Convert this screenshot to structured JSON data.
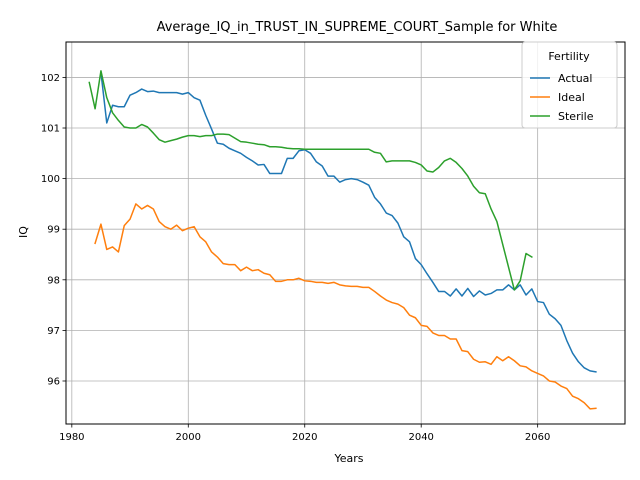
{
  "chart_data": {
    "type": "line",
    "title": "Average_IQ_in_TRUST_IN_SUPREME_COURT_Sample for White",
    "xlabel": "Years",
    "ylabel": "IQ",
    "xlim": [
      1979,
      2075
    ],
    "ylim": [
      95.15,
      102.7
    ],
    "xticks": [
      1980,
      2000,
      2020,
      2040,
      2060
    ],
    "yticks": [
      96,
      97,
      98,
      99,
      100,
      101,
      102
    ],
    "grid": true,
    "legend": {
      "title": "Fertility",
      "position": "top-right"
    },
    "series": [
      {
        "name": "Actual",
        "color": "#1f77b4",
        "x": [
          1985,
          1986,
          1987,
          1988,
          1989,
          1990,
          1991,
          1992,
          1993,
          1994,
          1995,
          1996,
          1997,
          1998,
          1999,
          2000,
          2001,
          2002,
          2003,
          2004,
          2005,
          2006,
          2007,
          2008,
          2009,
          2010,
          2011,
          2012,
          2013,
          2014,
          2015,
          2016,
          2017,
          2018,
          2019,
          2020,
          2021,
          2022,
          2023,
          2024,
          2025,
          2026,
          2027,
          2028,
          2029,
          2030,
          2031,
          2032,
          2033,
          2034,
          2035,
          2036,
          2037,
          2038,
          2039,
          2040,
          2041,
          2042,
          2043,
          2044,
          2045,
          2046,
          2047,
          2048,
          2049,
          2050,
          2051,
          2052,
          2053,
          2054,
          2055,
          2056,
          2057,
          2058,
          2059,
          2060,
          2061,
          2062,
          2063,
          2064,
          2065,
          2066,
          2067,
          2068,
          2069,
          2070
        ],
        "y": [
          102.1,
          101.1,
          101.45,
          101.42,
          101.42,
          101.65,
          101.7,
          101.77,
          101.72,
          101.73,
          101.7,
          101.7,
          101.7,
          101.7,
          101.67,
          101.7,
          101.6,
          101.55,
          101.25,
          100.98,
          100.7,
          100.68,
          100.6,
          100.55,
          100.5,
          100.42,
          100.35,
          100.27,
          100.28,
          100.1,
          100.1,
          100.1,
          100.4,
          100.4,
          100.55,
          100.57,
          100.5,
          100.33,
          100.25,
          100.05,
          100.05,
          99.93,
          99.98,
          100.0,
          99.98,
          99.93,
          99.87,
          99.63,
          99.5,
          99.32,
          99.27,
          99.12,
          98.85,
          98.75,
          98.42,
          98.3,
          98.12,
          97.95,
          97.77,
          97.77,
          97.68,
          97.82,
          97.68,
          97.83,
          97.67,
          97.78,
          97.7,
          97.73,
          97.8,
          97.8,
          97.9,
          97.8,
          97.9,
          97.7,
          97.82,
          97.57,
          97.55,
          97.32,
          97.23,
          97.1,
          96.8,
          96.55,
          96.38,
          96.26,
          96.2,
          96.18
        ]
      },
      {
        "name": "Ideal",
        "color": "#ff7f0e",
        "x": [
          1984,
          1985,
          1986,
          1987,
          1988,
          1989,
          1990,
          1991,
          1992,
          1993,
          1994,
          1995,
          1996,
          1997,
          1998,
          1999,
          2000,
          2001,
          2002,
          2003,
          2004,
          2005,
          2006,
          2007,
          2008,
          2009,
          2010,
          2011,
          2012,
          2013,
          2014,
          2015,
          2016,
          2017,
          2018,
          2019,
          2020,
          2021,
          2022,
          2023,
          2024,
          2025,
          2026,
          2027,
          2028,
          2029,
          2030,
          2031,
          2032,
          2033,
          2034,
          2035,
          2036,
          2037,
          2038,
          2039,
          2040,
          2041,
          2042,
          2043,
          2044,
          2045,
          2046,
          2047,
          2048,
          2049,
          2050,
          2051,
          2052,
          2053,
          2054,
          2055,
          2056,
          2057,
          2058,
          2059,
          2060,
          2061,
          2062,
          2063,
          2064,
          2065,
          2066,
          2067,
          2068,
          2069,
          2070
        ],
        "y": [
          98.72,
          99.1,
          98.6,
          98.65,
          98.55,
          99.07,
          99.2,
          99.5,
          99.4,
          99.47,
          99.4,
          99.15,
          99.05,
          99.0,
          99.08,
          98.97,
          99.02,
          99.05,
          98.85,
          98.75,
          98.55,
          98.45,
          98.32,
          98.3,
          98.3,
          98.18,
          98.25,
          98.18,
          98.2,
          98.13,
          98.1,
          97.97,
          97.97,
          98.0,
          98.0,
          98.03,
          97.98,
          97.97,
          97.95,
          97.95,
          97.93,
          97.95,
          97.9,
          97.88,
          97.87,
          97.87,
          97.85,
          97.85,
          97.77,
          97.68,
          97.6,
          97.55,
          97.52,
          97.45,
          97.3,
          97.25,
          97.1,
          97.08,
          96.95,
          96.9,
          96.9,
          96.83,
          96.83,
          96.6,
          96.58,
          96.43,
          96.37,
          96.38,
          96.33,
          96.48,
          96.4,
          96.48,
          96.4,
          96.3,
          96.28,
          96.2,
          96.15,
          96.1,
          96.0,
          95.98,
          95.9,
          95.85,
          95.7,
          95.65,
          95.57,
          95.45,
          95.46
        ]
      },
      {
        "name": "Sterile",
        "color": "#2ca02c",
        "x": [
          1983,
          1984,
          1985,
          1986,
          1987,
          1988,
          1989,
          1990,
          1991,
          1992,
          1993,
          1994,
          1995,
          1996,
          1997,
          1998,
          1999,
          2000,
          2001,
          2002,
          2003,
          2004,
          2005,
          2006,
          2007,
          2008,
          2009,
          2010,
          2011,
          2012,
          2013,
          2014,
          2015,
          2016,
          2017,
          2018,
          2019,
          2020,
          2021,
          2022,
          2023,
          2024,
          2025,
          2026,
          2027,
          2028,
          2029,
          2030,
          2031,
          2032,
          2033,
          2034,
          2035,
          2036,
          2037,
          2038,
          2039,
          2040,
          2041,
          2042,
          2043,
          2044,
          2045,
          2046,
          2047,
          2048,
          2049,
          2050,
          2051,
          2052,
          2053,
          2054,
          2055,
          2056,
          2057,
          2058,
          2059
        ],
        "y": [
          101.9,
          101.38,
          102.13,
          101.6,
          101.3,
          101.15,
          101.02,
          101.0,
          101.0,
          101.07,
          101.02,
          100.9,
          100.77,
          100.72,
          100.75,
          100.78,
          100.82,
          100.85,
          100.85,
          100.83,
          100.85,
          100.85,
          100.88,
          100.88,
          100.87,
          100.8,
          100.73,
          100.72,
          100.7,
          100.68,
          100.67,
          100.63,
          100.63,
          100.62,
          100.6,
          100.59,
          100.59,
          100.58,
          100.58,
          100.58,
          100.58,
          100.58,
          100.58,
          100.58,
          100.58,
          100.58,
          100.58,
          100.58,
          100.58,
          100.52,
          100.5,
          100.33,
          100.35,
          100.35,
          100.35,
          100.35,
          100.32,
          100.27,
          100.15,
          100.13,
          100.22,
          100.35,
          100.4,
          100.32,
          100.2,
          100.05,
          99.85,
          99.72,
          99.7,
          99.4,
          99.15,
          98.7,
          98.25,
          97.8,
          97.98,
          98.52,
          98.45
        ]
      }
    ]
  }
}
